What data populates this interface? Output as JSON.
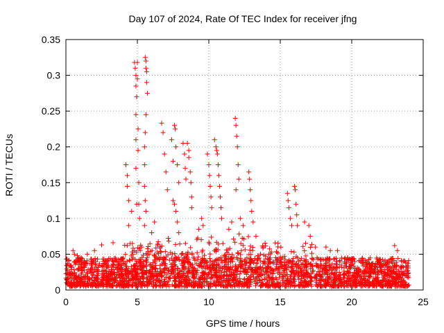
{
  "chart_data": {
    "type": "scatter",
    "title": "Day 107 of 2024, Rate Of TEC Index for receiver jfng",
    "xlabel": "GPS time / hours",
    "ylabel": "ROTI / TECUs",
    "xlim": [
      0,
      25
    ],
    "ylim": [
      0,
      0.35
    ],
    "grid": true,
    "marker": "+",
    "marker_color": "#ff0000",
    "x_ticks": [
      0,
      5,
      10,
      15,
      20,
      25
    ],
    "x_tick_labels": [
      "0",
      "5",
      "10",
      "15",
      "20",
      "25"
    ],
    "y_ticks": [
      0,
      0.05,
      0.1,
      0.15,
      0.2,
      0.25,
      0.3,
      0.35
    ],
    "y_tick_labels": [
      "0",
      "0.05",
      "0.1",
      "0.15",
      "0.2",
      "0.25",
      "0.3",
      "0.35"
    ],
    "data_range": {
      "x": [
        0,
        24
      ],
      "y_base": [
        0.005,
        0.045
      ]
    },
    "series": [
      {
        "name": "ROTI",
        "dense_baseline": "continuous band of points roughly 0.005-0.045 TECU across 0-24 h",
        "points": [
          [
            0.5,
            0.055
          ],
          [
            0.6,
            0.05
          ],
          [
            0.8,
            0.048
          ],
          [
            1.5,
            0.05
          ],
          [
            2.0,
            0.055
          ],
          [
            2.5,
            0.063
          ],
          [
            3.3,
            0.066
          ],
          [
            4.2,
            0.175
          ],
          [
            4.3,
            0.16
          ],
          [
            4.3,
            0.145
          ],
          [
            4.4,
            0.125
          ],
          [
            4.4,
            0.09
          ],
          [
            4.5,
            0.065
          ],
          [
            4.6,
            0.11
          ],
          [
            4.8,
            0.318
          ],
          [
            4.85,
            0.31
          ],
          [
            4.9,
            0.3
          ],
          [
            4.9,
            0.285
          ],
          [
            4.95,
            0.27
          ],
          [
            4.9,
            0.245
          ],
          [
            4.9,
            0.21
          ],
          [
            4.9,
            0.17
          ],
          [
            4.95,
            0.12
          ],
          [
            5.0,
            0.318
          ],
          [
            5.0,
            0.295
          ],
          [
            5.05,
            0.225
          ],
          [
            5.05,
            0.195
          ],
          [
            5.1,
            0.15
          ],
          [
            5.1,
            0.12
          ],
          [
            5.15,
            0.1
          ],
          [
            5.2,
            0.055
          ],
          [
            5.3,
            0.06
          ],
          [
            5.55,
            0.325
          ],
          [
            5.6,
            0.32
          ],
          [
            5.6,
            0.31
          ],
          [
            5.65,
            0.305
          ],
          [
            5.65,
            0.29
          ],
          [
            5.7,
            0.275
          ],
          [
            5.6,
            0.245
          ],
          [
            5.55,
            0.22
          ],
          [
            5.5,
            0.2
          ],
          [
            5.5,
            0.175
          ],
          [
            5.5,
            0.145
          ],
          [
            5.55,
            0.125
          ],
          [
            5.6,
            0.11
          ],
          [
            5.5,
            0.09
          ],
          [
            6.0,
            0.08
          ],
          [
            6.2,
            0.095
          ],
          [
            6.7,
            0.233
          ],
          [
            6.8,
            0.22
          ],
          [
            6.9,
            0.19
          ],
          [
            7.0,
            0.165
          ],
          [
            7.1,
            0.14
          ],
          [
            7.4,
            0.21
          ],
          [
            7.5,
            0.18
          ],
          [
            7.6,
            0.23
          ],
          [
            7.65,
            0.225
          ],
          [
            7.7,
            0.2
          ],
          [
            7.8,
            0.175
          ],
          [
            7.9,
            0.15
          ],
          [
            7.5,
            0.125
          ],
          [
            7.6,
            0.12
          ],
          [
            7.7,
            0.11
          ],
          [
            7.8,
            0.095
          ],
          [
            7.9,
            0.08
          ],
          [
            8.2,
            0.205
          ],
          [
            8.3,
            0.19
          ],
          [
            8.35,
            0.17
          ],
          [
            8.4,
            0.155
          ],
          [
            8.5,
            0.205
          ],
          [
            8.6,
            0.195
          ],
          [
            8.6,
            0.185
          ],
          [
            8.7,
            0.165
          ],
          [
            8.75,
            0.15
          ],
          [
            8.8,
            0.13
          ],
          [
            8.8,
            0.115
          ],
          [
            9.3,
            0.085
          ],
          [
            9.5,
            0.1
          ],
          [
            9.6,
            0.09
          ],
          [
            9.9,
            0.19
          ],
          [
            10.0,
            0.175
          ],
          [
            10.05,
            0.16
          ],
          [
            10.1,
            0.145
          ],
          [
            10.15,
            0.13
          ],
          [
            10.2,
            0.115
          ],
          [
            10.4,
            0.21
          ],
          [
            10.5,
            0.2
          ],
          [
            10.55,
            0.195
          ],
          [
            10.6,
            0.19
          ],
          [
            10.65,
            0.175
          ],
          [
            10.7,
            0.16
          ],
          [
            10.75,
            0.145
          ],
          [
            10.8,
            0.13
          ],
          [
            10.85,
            0.115
          ],
          [
            10.9,
            0.1
          ],
          [
            11.4,
            0.085
          ],
          [
            11.6,
            0.095
          ],
          [
            11.85,
            0.24
          ],
          [
            11.9,
            0.23
          ],
          [
            11.95,
            0.215
          ],
          [
            12.0,
            0.2
          ],
          [
            12.05,
            0.175
          ],
          [
            12.1,
            0.155
          ],
          [
            11.9,
            0.14
          ],
          [
            12.2,
            0.1
          ],
          [
            12.4,
            0.09
          ],
          [
            12.8,
            0.165
          ],
          [
            12.85,
            0.155
          ],
          [
            12.9,
            0.14
          ],
          [
            12.95,
            0.125
          ],
          [
            13.0,
            0.11
          ],
          [
            13.1,
            0.095
          ],
          [
            13.3,
            0.075
          ],
          [
            13.8,
            0.06
          ],
          [
            14.2,
            0.05
          ],
          [
            15.5,
            0.135
          ],
          [
            15.55,
            0.125
          ],
          [
            15.6,
            0.115
          ],
          [
            15.7,
            0.1
          ],
          [
            15.8,
            0.09
          ],
          [
            16.0,
            0.145
          ],
          [
            16.05,
            0.14
          ],
          [
            16.1,
            0.12
          ],
          [
            16.15,
            0.105
          ],
          [
            16.2,
            0.09
          ],
          [
            16.7,
            0.095
          ],
          [
            17.0,
            0.09
          ],
          [
            17.1,
            0.075
          ],
          [
            18.2,
            0.06
          ],
          [
            18.5,
            0.055
          ],
          [
            19.0,
            0.055
          ],
          [
            19.7,
            0.045
          ],
          [
            21.0,
            0.035
          ],
          [
            22.0,
            0.035
          ],
          [
            23.0,
            0.062
          ],
          [
            23.2,
            0.055
          ],
          [
            23.5,
            0.04
          ]
        ]
      }
    ]
  }
}
